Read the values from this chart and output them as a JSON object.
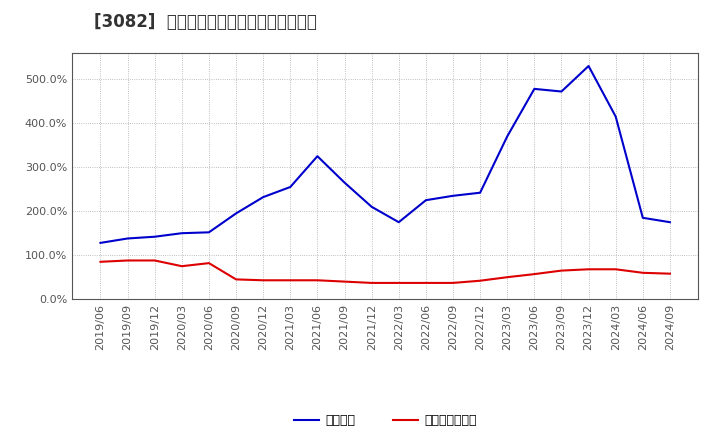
{
  "title": "[3082]  固定比率、固定長期適合率の推移",
  "blue_label": "固定比率",
  "red_label": "固定長期適合率",
  "dates": [
    "2019/06",
    "2019/09",
    "2019/12",
    "2020/03",
    "2020/06",
    "2020/09",
    "2020/12",
    "2021/03",
    "2021/06",
    "2021/09",
    "2021/12",
    "2022/03",
    "2022/06",
    "2022/09",
    "2022/12",
    "2023/03",
    "2023/06",
    "2023/09",
    "2023/12",
    "2024/03",
    "2024/06",
    "2024/09"
  ],
  "blue_values": [
    128,
    138,
    142,
    150,
    152,
    195,
    232,
    255,
    325,
    265,
    210,
    175,
    225,
    235,
    242,
    370,
    478,
    472,
    530,
    415,
    185,
    175
  ],
  "red_values": [
    85,
    88,
    88,
    75,
    82,
    45,
    43,
    43,
    43,
    40,
    37,
    37,
    37,
    37,
    42,
    50,
    57,
    65,
    68,
    68,
    60,
    58
  ],
  "ylim": [
    0,
    560
  ],
  "yticks": [
    0,
    100,
    200,
    300,
    400,
    500
  ],
  "blue_color": "#0000cc",
  "red_color": "#dd0000",
  "bg_color": "#ffffff",
  "plot_bg_color": "#ffffff",
  "grid_color": "#aaaaaa",
  "title_color": "#333333",
  "title_fontsize": 12,
  "legend_fontsize": 9,
  "tick_fontsize": 8
}
